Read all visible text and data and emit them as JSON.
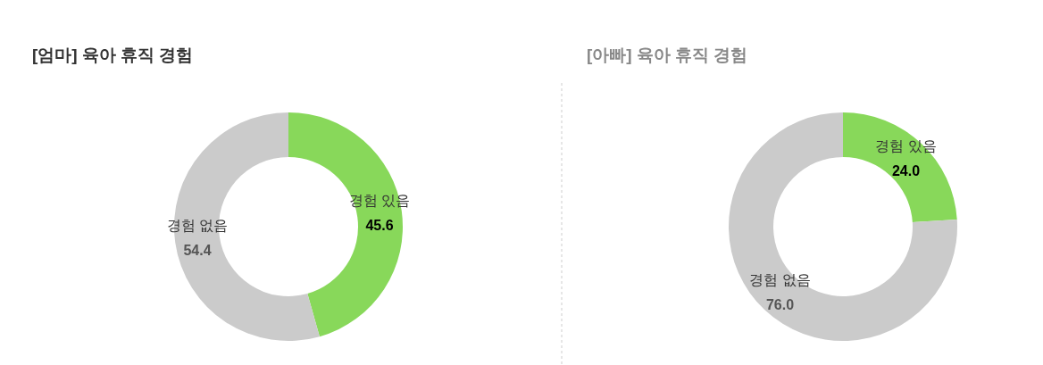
{
  "chart_data": [
    {
      "type": "donut",
      "title": "[엄마] 육아 휴직 경험",
      "categories": [
        "경험 있음",
        "경험 없음"
      ],
      "values": [
        45.6,
        54.4
      ],
      "colors": [
        "#88d85a",
        "#cbcbcb"
      ],
      "value_labels": [
        "45.6",
        "54.4"
      ],
      "legend": false
    },
    {
      "type": "donut",
      "title": "[아빠] 육아 휴직 경험",
      "categories": [
        "경험 있음",
        "경험 없음"
      ],
      "values": [
        24.0,
        76.0
      ],
      "colors": [
        "#88d85a",
        "#cbcbcb"
      ],
      "value_labels": [
        "24.0",
        "76.0"
      ],
      "legend": false
    }
  ]
}
